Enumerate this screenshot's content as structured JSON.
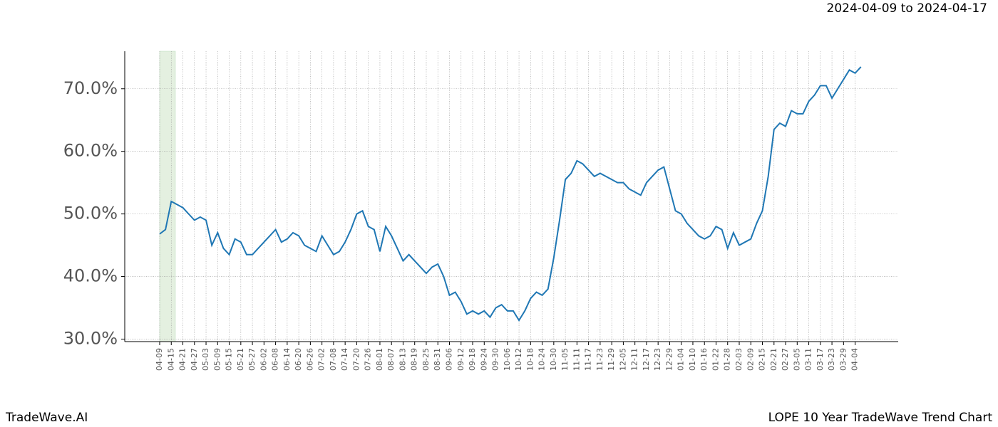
{
  "header": {
    "date_range": "2024-04-09 to 2024-04-17"
  },
  "footer": {
    "brand": "TradeWave.AI",
    "caption": "LOPE 10 Year TradeWave Trend Chart"
  },
  "chart_data": {
    "type": "line",
    "color": "#1f77b4",
    "grid": true,
    "categories": [
      "04-09",
      null,
      "04-15",
      null,
      "04-21",
      null,
      "04-27",
      null,
      "05-03",
      null,
      "05-09",
      null,
      "05-15",
      null,
      "05-21",
      null,
      "05-27",
      null,
      "06-02",
      null,
      "06-08",
      null,
      "06-14",
      null,
      "06-20",
      null,
      "06-26",
      null,
      "07-02",
      null,
      "07-08",
      null,
      "07-14",
      null,
      "07-20",
      null,
      "07-26",
      null,
      "08-01",
      null,
      "08-07",
      null,
      "08-13",
      null,
      "08-19",
      null,
      "08-25",
      null,
      "08-31",
      null,
      "09-06",
      null,
      "09-12",
      null,
      "09-18",
      null,
      "09-24",
      null,
      "09-30",
      null,
      "10-06",
      null,
      "10-12",
      null,
      "10-18",
      null,
      "10-24",
      null,
      "10-30",
      null,
      "11-05",
      null,
      "11-11",
      null,
      "11-17",
      null,
      "11-23",
      null,
      "11-29",
      null,
      "12-05",
      null,
      "12-11",
      null,
      "12-17",
      null,
      "12-23",
      null,
      "12-29",
      null,
      "01-04",
      null,
      "01-10",
      null,
      "01-16",
      null,
      "01-22",
      null,
      "01-28",
      null,
      "02-03",
      null,
      "02-09",
      null,
      "02-15",
      null,
      "02-21",
      null,
      "02-27",
      null,
      "03-05",
      null,
      "03-11",
      null,
      "03-17",
      null,
      "03-23",
      null,
      "03-29",
      null,
      "04-04",
      null
    ],
    "values": [
      46.8,
      47.5,
      52,
      51.5,
      51,
      50,
      49,
      49.5,
      49,
      45,
      47,
      44.5,
      43.5,
      46,
      45.5,
      43.5,
      43.5,
      44.5,
      45.5,
      46.5,
      47.5,
      45.5,
      46,
      47,
      46.5,
      45,
      44.5,
      44,
      46.5,
      45,
      43.5,
      44,
      45.5,
      47.5,
      50,
      50.5,
      48,
      47.5,
      44,
      48,
      46.5,
      44.5,
      42.5,
      43.5,
      42.5,
      41.5,
      40.5,
      41.5,
      42,
      40,
      37,
      37.5,
      36,
      34,
      34.5,
      34,
      34.5,
      33.5,
      35,
      35.5,
      34.5,
      34.5,
      33,
      34.5,
      36.5,
      37.5,
      37,
      38,
      43,
      49,
      55.5,
      56.5,
      58.5,
      58,
      57,
      56,
      56.5,
      56,
      55.5,
      55,
      55,
      54,
      53.5,
      53,
      55,
      56,
      57,
      57.5,
      54,
      50.5,
      50,
      48.5,
      47.5,
      46.5,
      46,
      46.5,
      48,
      47.5,
      44.5,
      47,
      45,
      45.5,
      46,
      48.5,
      50.5,
      56,
      63.5,
      64.5,
      64,
      66.5,
      66,
      66,
      68,
      69,
      70.5,
      70.5,
      68.5,
      70,
      71.5,
      73,
      72.5,
      73.5
    ],
    "ylim": [
      29.6,
      76
    ],
    "yticks": [
      {
        "value": 30,
        "label": "30.0%"
      },
      {
        "value": 40,
        "label": "40.0%"
      },
      {
        "value": 50,
        "label": "50.0%"
      },
      {
        "value": 60,
        "label": "60.0%"
      },
      {
        "value": 70,
        "label": "70.0%"
      }
    ]
  }
}
